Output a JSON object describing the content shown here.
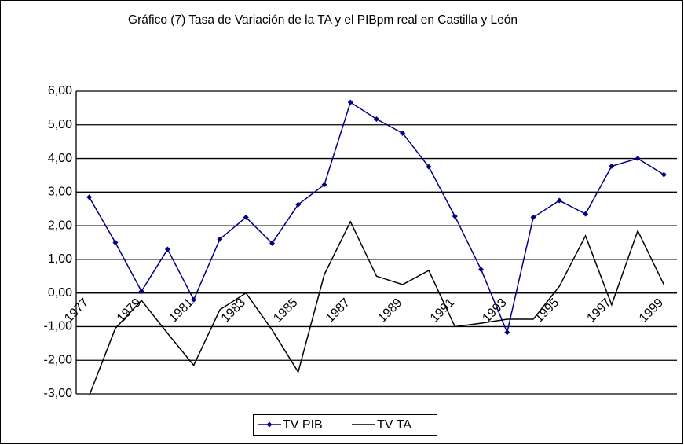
{
  "chart_data": {
    "type": "line",
    "title": "Gráfico (7) Tasa de Variación de la TA y el PIBpm real en Castilla y León",
    "categories": [
      "1977",
      null,
      "1979",
      null,
      "1981",
      null,
      "1983",
      null,
      "1985",
      null,
      "1987",
      null,
      "1989",
      null,
      "1991",
      null,
      "1993",
      null,
      "1995",
      null,
      "1997",
      null,
      "1999"
    ],
    "series": [
      {
        "name": "TV PIB",
        "color": "#000080",
        "marker": "diamond",
        "values": [
          2.85,
          1.5,
          0.05,
          1.3,
          -0.2,
          1.6,
          2.25,
          1.48,
          2.63,
          3.22,
          5.67,
          5.17,
          4.75,
          3.75,
          2.28,
          0.7,
          -1.17,
          2.25,
          2.75,
          2.35,
          3.77,
          4.0,
          3.52
        ]
      },
      {
        "name": "TV TA",
        "color": "#000000",
        "values": [
          -3.05,
          -1.05,
          -0.22,
          -1.2,
          -2.15,
          -0.5,
          0.0,
          -1.1,
          -2.35,
          0.55,
          2.12,
          0.5,
          0.25,
          0.67,
          -1.0,
          -0.9,
          -0.78,
          -0.78,
          0.2,
          1.7,
          -0.35,
          1.85,
          0.25
        ]
      }
    ],
    "ylim": [
      -3,
      6
    ],
    "yticks": [
      {
        "value": -3,
        "label": "-3,00"
      },
      {
        "value": -2,
        "label": "-2,00"
      },
      {
        "value": -1,
        "label": "-1,00"
      },
      {
        "value": 0,
        "label": "0,00"
      },
      {
        "value": 1,
        "label": "1,00"
      },
      {
        "value": 2,
        "label": "2,00"
      },
      {
        "value": 3,
        "label": "3,00"
      },
      {
        "value": 4,
        "label": "4,00"
      },
      {
        "value": 5,
        "label": "5,00"
      },
      {
        "value": 6,
        "label": "6,00"
      }
    ],
    "grid": true,
    "legend": "bottom"
  }
}
